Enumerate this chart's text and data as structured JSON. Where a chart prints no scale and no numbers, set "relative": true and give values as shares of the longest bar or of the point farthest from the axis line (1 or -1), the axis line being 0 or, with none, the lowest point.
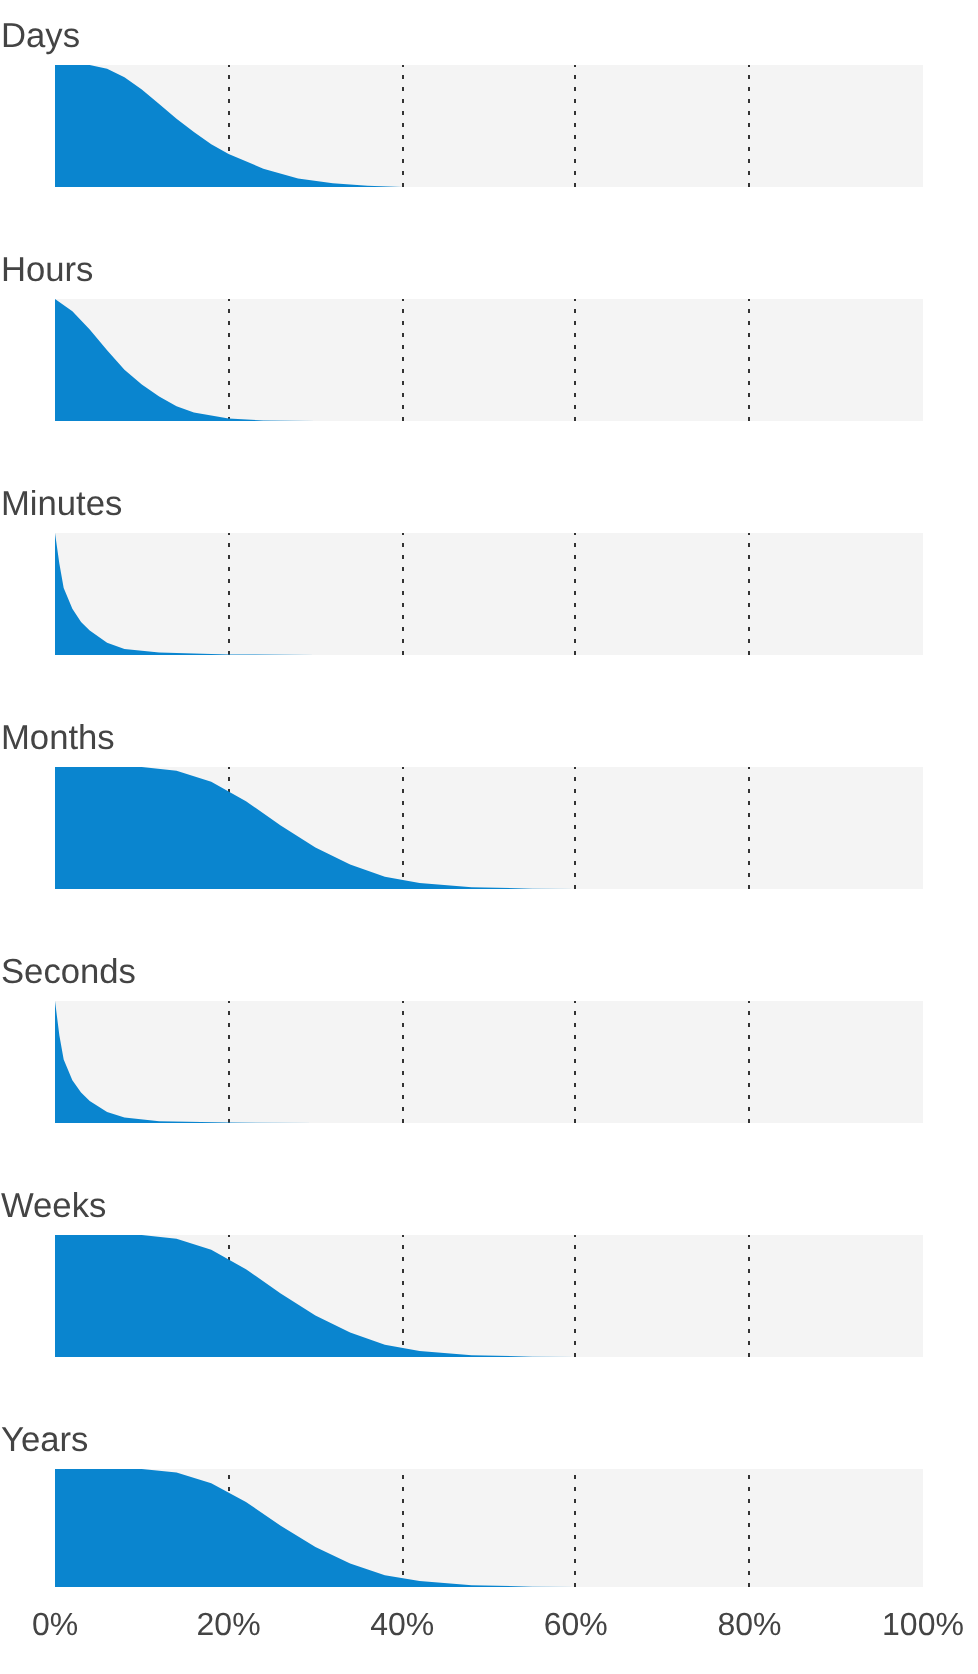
{
  "chart_data": [
    {
      "type": "area",
      "title": "Days",
      "relative": true,
      "x": [
        0,
        4,
        6,
        8,
        10,
        12,
        14,
        16,
        18,
        20,
        24,
        28,
        32,
        36,
        40,
        100
      ],
      "values": [
        1,
        1,
        0.97,
        0.9,
        0.8,
        0.68,
        0.56,
        0.45,
        0.35,
        0.27,
        0.15,
        0.07,
        0.03,
        0.01,
        0,
        0
      ],
      "color": "#0a85cf",
      "xlim": [
        0,
        100
      ],
      "xticks": [
        {
          "value": 0,
          "label": null
        },
        {
          "value": 20,
          "label": null
        },
        {
          "value": 40,
          "label": null
        },
        {
          "value": 60,
          "label": null
        },
        {
          "value": 80,
          "label": null
        },
        {
          "value": 100,
          "label": null
        }
      ],
      "grid": "x",
      "tick_labels": false
    },
    {
      "type": "area",
      "title": "Hours",
      "relative": true,
      "x": [
        0,
        2,
        4,
        6,
        8,
        10,
        12,
        14,
        16,
        20,
        24,
        30,
        100
      ],
      "values": [
        1,
        0.9,
        0.75,
        0.58,
        0.42,
        0.3,
        0.2,
        0.12,
        0.07,
        0.02,
        0.005,
        0,
        0
      ],
      "color": "#0a85cf",
      "xlim": [
        0,
        100
      ],
      "xticks": [
        {
          "value": 0,
          "label": null
        },
        {
          "value": 20,
          "label": null
        },
        {
          "value": 40,
          "label": null
        },
        {
          "value": 60,
          "label": null
        },
        {
          "value": 80,
          "label": null
        },
        {
          "value": 100,
          "label": null
        }
      ],
      "grid": "x",
      "tick_labels": false
    },
    {
      "type": "area",
      "title": "Minutes",
      "relative": true,
      "x": [
        0,
        0.5,
        1,
        2,
        3,
        4,
        6,
        8,
        12,
        20,
        30,
        100
      ],
      "values": [
        1,
        0.75,
        0.55,
        0.38,
        0.27,
        0.2,
        0.1,
        0.05,
        0.02,
        0.005,
        0,
        0
      ],
      "color": "#0a85cf",
      "xlim": [
        0,
        100
      ],
      "xticks": [
        {
          "value": 0,
          "label": null
        },
        {
          "value": 20,
          "label": null
        },
        {
          "value": 40,
          "label": null
        },
        {
          "value": 60,
          "label": null
        },
        {
          "value": 80,
          "label": null
        },
        {
          "value": 100,
          "label": null
        }
      ],
      "grid": "x",
      "tick_labels": false
    },
    {
      "type": "area",
      "title": "Months",
      "relative": true,
      "x": [
        0,
        10,
        14,
        18,
        22,
        26,
        30,
        34,
        38,
        42,
        48,
        55,
        60,
        100
      ],
      "values": [
        1,
        1,
        0.97,
        0.88,
        0.72,
        0.52,
        0.34,
        0.2,
        0.1,
        0.05,
        0.015,
        0.003,
        0,
        0
      ],
      "color": "#0a85cf",
      "xlim": [
        0,
        100
      ],
      "xticks": [
        {
          "value": 0,
          "label": null
        },
        {
          "value": 20,
          "label": null
        },
        {
          "value": 40,
          "label": null
        },
        {
          "value": 60,
          "label": null
        },
        {
          "value": 80,
          "label": null
        },
        {
          "value": 100,
          "label": null
        }
      ],
      "grid": "x",
      "tick_labels": false
    },
    {
      "type": "area",
      "title": "Seconds",
      "relative": true,
      "x": [
        0,
        0.5,
        1,
        2,
        3,
        4,
        6,
        8,
        12,
        20,
        30,
        100
      ],
      "values": [
        1,
        0.72,
        0.52,
        0.35,
        0.25,
        0.18,
        0.09,
        0.045,
        0.015,
        0.004,
        0,
        0
      ],
      "color": "#0a85cf",
      "xlim": [
        0,
        100
      ],
      "xticks": [
        {
          "value": 0,
          "label": null
        },
        {
          "value": 20,
          "label": null
        },
        {
          "value": 40,
          "label": null
        },
        {
          "value": 60,
          "label": null
        },
        {
          "value": 80,
          "label": null
        },
        {
          "value": 100,
          "label": null
        }
      ],
      "grid": "x",
      "tick_labels": false
    },
    {
      "type": "area",
      "title": "Weeks",
      "relative": true,
      "x": [
        0,
        10,
        14,
        18,
        22,
        26,
        30,
        34,
        38,
        42,
        48,
        55,
        60,
        100
      ],
      "values": [
        1,
        1,
        0.97,
        0.88,
        0.72,
        0.52,
        0.34,
        0.2,
        0.1,
        0.05,
        0.015,
        0.003,
        0,
        0
      ],
      "color": "#0a85cf",
      "xlim": [
        0,
        100
      ],
      "xticks": [
        {
          "value": 0,
          "label": null
        },
        {
          "value": 20,
          "label": null
        },
        {
          "value": 40,
          "label": null
        },
        {
          "value": 60,
          "label": null
        },
        {
          "value": 80,
          "label": null
        },
        {
          "value": 100,
          "label": null
        }
      ],
      "grid": "x",
      "tick_labels": false
    },
    {
      "type": "area",
      "title": "Years",
      "relative": true,
      "x": [
        0,
        10,
        14,
        18,
        22,
        26,
        30,
        34,
        38,
        42,
        48,
        55,
        60,
        100
      ],
      "values": [
        1,
        1,
        0.97,
        0.88,
        0.72,
        0.52,
        0.34,
        0.2,
        0.1,
        0.05,
        0.015,
        0.003,
        0,
        0
      ],
      "color": "#0a85cf",
      "xlim": [
        0,
        100
      ],
      "xticks": [
        {
          "value": 0,
          "label": "0%"
        },
        {
          "value": 20,
          "label": "20%"
        },
        {
          "value": 40,
          "label": "40%"
        },
        {
          "value": 60,
          "label": "60%"
        },
        {
          "value": 80,
          "label": "80%"
        },
        {
          "value": 100,
          "label": "100%"
        }
      ],
      "grid": "x",
      "tick_labels": "x"
    }
  ]
}
